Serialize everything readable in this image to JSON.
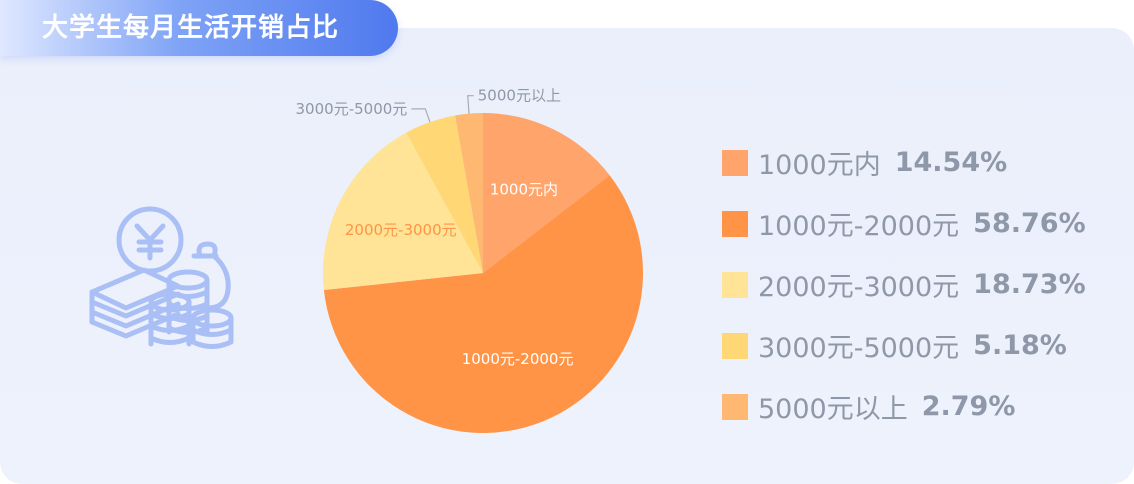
{
  "title": "大学生每月生活开销占比",
  "illustration": {
    "icon": "money-coins-icon",
    "color": "#a9bff5"
  },
  "chart_data": {
    "type": "pie",
    "start_angle_deg": 0,
    "direction": "clockwise",
    "slices": [
      {
        "label": "1000元内",
        "value": 14.54,
        "pct_text": "14.54%",
        "color": "#ffa46a",
        "label_color": "#ffffff",
        "inside_label": true
      },
      {
        "label": "1000元-2000元",
        "value": 58.76,
        "pct_text": "58.76%",
        "color": "#ff9446",
        "label_color": "#ffffff",
        "inside_label": true
      },
      {
        "label": "2000元-3000元",
        "value": 18.73,
        "pct_text": "18.73%",
        "color": "#ffe497",
        "label_color": "#ff9446",
        "inside_label": true
      },
      {
        "label": "3000元-5000元",
        "value": 5.18,
        "pct_text": "5.18%",
        "color": "#ffd775",
        "label_color": "#8f98a8",
        "inside_label": false
      },
      {
        "label": "5000元以上",
        "value": 2.79,
        "pct_text": "2.79%",
        "color": "#ffb871",
        "label_color": "#8f98a8",
        "inside_label": false
      }
    ],
    "legend_position": "right"
  }
}
